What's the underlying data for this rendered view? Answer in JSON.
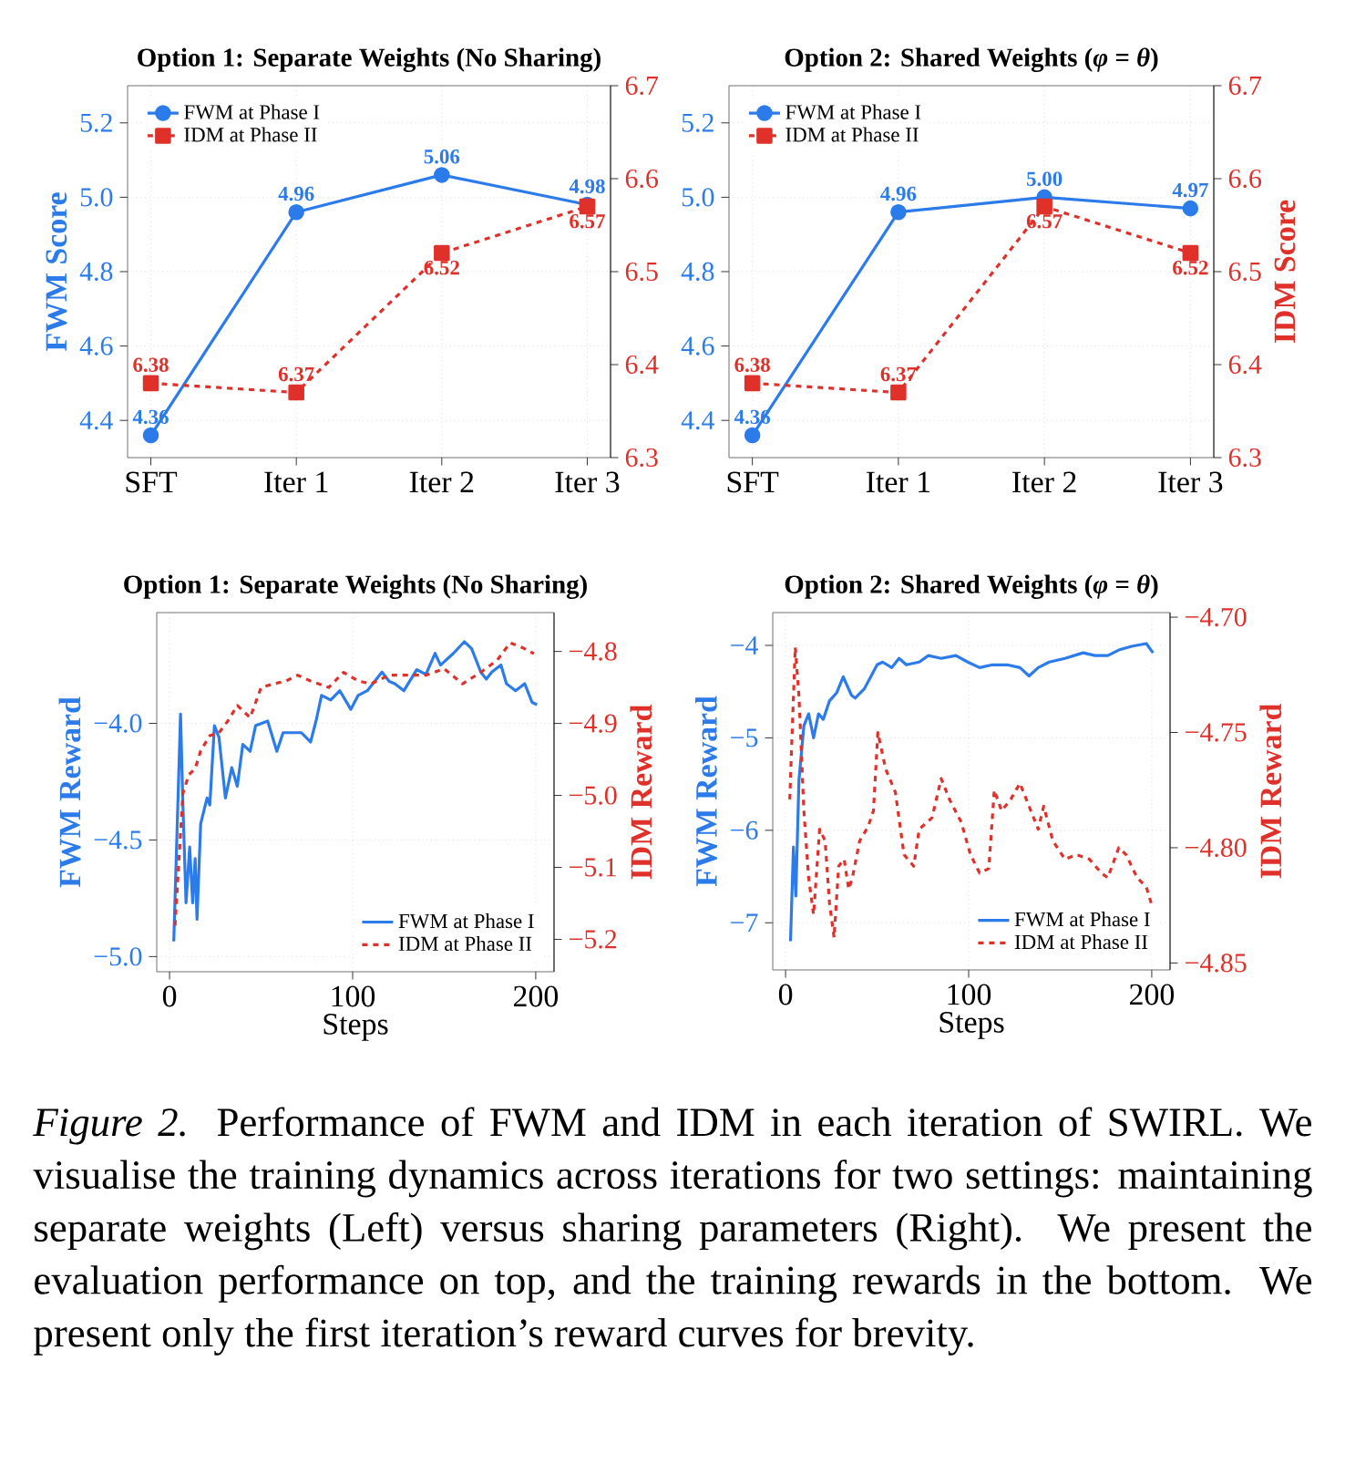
{
  "chart_data": [
    {
      "type": "line",
      "title": "Option 1: Separate Weights (No Sharing)",
      "ylabel": "FWM Score",
      "categories": [
        "SFT",
        "Iter 1",
        "Iter 2",
        "Iter 3"
      ],
      "ylim": [
        4.3,
        5.3
      ],
      "yticks": [
        {
          "value": 4.4,
          "label": "4.4"
        },
        {
          "value": 4.6,
          "label": "4.6"
        },
        {
          "value": 4.8,
          "label": "4.8"
        },
        {
          "value": 5.0,
          "label": "5.0"
        },
        {
          "value": 5.2,
          "label": "5.2"
        }
      ],
      "y2lim": [
        6.3,
        6.7
      ],
      "y2ticks": [
        {
          "value": 6.3,
          "label": "6.3"
        },
        {
          "value": 6.4,
          "label": "6.4"
        },
        {
          "value": 6.5,
          "label": "6.5"
        },
        {
          "value": 6.6,
          "label": "6.6"
        },
        {
          "value": 6.7,
          "label": "6.7"
        }
      ],
      "grid": true,
      "legend": "top left",
      "series": [
        {
          "name": "FWM at Phase I",
          "color": "#2b7bea",
          "marker": "circle",
          "line_style": "solid",
          "values": [
            4.36,
            4.96,
            5.06,
            4.98
          ],
          "value_labels": [
            "4.36",
            "4.96",
            "5.06",
            "4.98"
          ]
        },
        {
          "name": "IDM at Phase II",
          "color": "#e0302a",
          "marker": "square",
          "line_style": "dashed",
          "axis": "y2",
          "values": [
            6.38,
            6.37,
            6.52,
            6.57
          ],
          "value_labels": [
            "6.38",
            "6.37",
            "6.52",
            "6.57"
          ]
        }
      ]
    },
    {
      "type": "line",
      "title": "Option 2: Shared Weights (*φ* = *θ*)",
      "y2label": "IDM Score",
      "categories": [
        "SFT",
        "Iter 1",
        "Iter 2",
        "Iter 3"
      ],
      "ylim": [
        4.3,
        5.3
      ],
      "yticks": [
        {
          "value": 4.4,
          "label": "4.4"
        },
        {
          "value": 4.6,
          "label": "4.6"
        },
        {
          "value": 4.8,
          "label": "4.8"
        },
        {
          "value": 5.0,
          "label": "5.0"
        },
        {
          "value": 5.2,
          "label": "5.2"
        }
      ],
      "y2lim": [
        6.3,
        6.7
      ],
      "y2ticks": [
        {
          "value": 6.3,
          "label": "6.3"
        },
        {
          "value": 6.4,
          "label": "6.4"
        },
        {
          "value": 6.5,
          "label": "6.5"
        },
        {
          "value": 6.6,
          "label": "6.6"
        },
        {
          "value": 6.7,
          "label": "6.7"
        }
      ],
      "grid": true,
      "legend": "top left",
      "series": [
        {
          "name": "FWM at Phase I",
          "color": "#2b7bea",
          "marker": "circle",
          "line_style": "solid",
          "values": [
            4.36,
            4.96,
            5.0,
            4.97
          ],
          "value_labels": [
            "4.36",
            "4.96",
            "5.00",
            "4.97"
          ]
        },
        {
          "name": "IDM at Phase II",
          "color": "#e0302a",
          "marker": "square",
          "line_style": "dashed",
          "axis": "y2",
          "values": [
            6.38,
            6.37,
            6.57,
            6.52
          ],
          "value_labels": [
            "6.38",
            "6.37",
            "6.57",
            "6.52"
          ]
        }
      ]
    },
    {
      "type": "line",
      "title": "Option 1: Separate Weights (No Sharing)",
      "xlabel": "Steps",
      "ylabel": "FWM Reward",
      "y2label": "IDM Reward",
      "xlim": [
        -7,
        210
      ],
      "xticks": [
        0,
        100,
        200
      ],
      "ylim": [
        -5.065,
        -3.525
      ],
      "yticks": [
        {
          "value": -5.0,
          "label": "−5.0"
        },
        {
          "value": -4.5,
          "label": "−4.5"
        },
        {
          "value": -4.0,
          "label": "−4.0"
        }
      ],
      "y2lim": [
        -5.245,
        -4.746
      ],
      "y2ticks": [
        {
          "value": -5.2,
          "label": "−5.2"
        },
        {
          "value": -5.1,
          "label": "−5.1"
        },
        {
          "value": -5.0,
          "label": "−5.0"
        },
        {
          "value": -4.9,
          "label": "−4.9"
        },
        {
          "value": -4.8,
          "label": "−4.8"
        }
      ],
      "grid": true,
      "legend": "bottom right",
      "series": [
        {
          "name": "FWM at Phase I",
          "color": "#2b7bea",
          "line_style": "solid",
          "x": [
            2.3,
            6,
            7.3,
            9,
            11,
            12.6,
            14,
            15,
            17,
            20.5,
            22,
            24.5,
            27,
            30.5,
            34,
            37,
            40,
            44,
            47,
            53.6,
            58.6,
            62,
            67,
            72,
            77,
            80,
            83,
            88,
            93,
            99,
            103,
            108,
            113,
            116,
            120,
            123,
            128,
            135,
            140,
            145,
            148,
            155,
            161,
            165,
            170,
            173,
            176,
            181,
            184,
            189,
            194,
            198,
            200.7
          ],
          "values": [
            -4.935,
            -3.96,
            -4.35,
            -4.77,
            -4.53,
            -4.77,
            -4.58,
            -4.84,
            -4.43,
            -4.32,
            -4.35,
            -4.01,
            -4.06,
            -4.32,
            -4.19,
            -4.27,
            -4.09,
            -4.12,
            -4.01,
            -3.99,
            -4.12,
            -4.04,
            -4.04,
            -4.04,
            -4.08,
            -3.99,
            -3.88,
            -3.9,
            -3.86,
            -3.94,
            -3.88,
            -3.86,
            -3.81,
            -3.78,
            -3.82,
            -3.83,
            -3.86,
            -3.77,
            -3.79,
            -3.7,
            -3.75,
            -3.7,
            -3.65,
            -3.68,
            -3.78,
            -3.81,
            -3.78,
            -3.75,
            -3.83,
            -3.86,
            -3.83,
            -3.91,
            -3.92
          ]
        },
        {
          "name": "IDM at Phase II",
          "color": "#e0302a",
          "line_style": "dashed",
          "axis": "y2",
          "x": [
            3,
            7.3,
            10.6,
            14,
            17,
            22,
            27,
            32,
            37,
            44,
            50,
            57,
            63.6,
            70,
            77,
            87,
            95,
            103,
            110,
            120,
            130,
            140,
            150,
            160,
            170,
            179,
            186,
            193,
            199
          ],
          "values": [
            -5.181,
            -4.997,
            -4.971,
            -4.963,
            -4.938,
            -4.917,
            -4.913,
            -4.896,
            -4.875,
            -4.892,
            -4.85,
            -4.845,
            -4.841,
            -4.833,
            -4.841,
            -4.85,
            -4.829,
            -4.841,
            -4.845,
            -4.833,
            -4.833,
            -4.833,
            -4.824,
            -4.845,
            -4.829,
            -4.812,
            -4.788,
            -4.795,
            -4.803
          ]
        }
      ]
    },
    {
      "type": "line",
      "title": "Option 2: Shared Weights (*φ* = *θ*)",
      "xlabel": "Steps",
      "ylabel": "FWM Reward",
      "y2label": "IDM Reward",
      "xlim": [
        -7,
        210
      ],
      "xticks": [
        0,
        100,
        200
      ],
      "ylim": [
        -7.51,
        -3.645
      ],
      "yticks": [
        {
          "value": -7,
          "label": "−7"
        },
        {
          "value": -6,
          "label": "−6"
        },
        {
          "value": -5,
          "label": "−5"
        },
        {
          "value": -4,
          "label": "−4"
        }
      ],
      "y2lim": [
        -4.853,
        -4.698
      ],
      "y2ticks": [
        {
          "value": -4.85,
          "label": "−4.85"
        },
        {
          "value": -4.8,
          "label": "−4.80"
        },
        {
          "value": -4.75,
          "label": "−4.75"
        },
        {
          "value": -4.7,
          "label": "−4.70"
        }
      ],
      "grid": true,
      "legend": "bottom right",
      "series": [
        {
          "name": "FWM at Phase I",
          "color": "#2b7bea",
          "line_style": "solid",
          "x": [
            2.7,
            4.3,
            5.6,
            7.3,
            10,
            12.6,
            15.3,
            18,
            20.6,
            24,
            28,
            31.5,
            36,
            38,
            43,
            50,
            53,
            58,
            62,
            66,
            73,
            78,
            85,
            93,
            99.5,
            106,
            113,
            121,
            128,
            133,
            138,
            144,
            152.6,
            162.5,
            169,
            176,
            182,
            189,
            197,
            200.7
          ],
          "values": [
            -7.2,
            -6.18,
            -6.71,
            -5.46,
            -4.87,
            -4.74,
            -5.0,
            -4.74,
            -4.8,
            -4.6,
            -4.51,
            -4.34,
            -4.54,
            -4.57,
            -4.47,
            -4.21,
            -4.18,
            -4.24,
            -4.14,
            -4.21,
            -4.18,
            -4.11,
            -4.14,
            -4.11,
            -4.18,
            -4.24,
            -4.21,
            -4.21,
            -4.24,
            -4.33,
            -4.24,
            -4.18,
            -4.14,
            -4.08,
            -4.11,
            -4.11,
            -4.05,
            -4.01,
            -3.98,
            -4.08
          ]
        },
        {
          "name": "IDM at Phase II",
          "color": "#e0302a",
          "line_style": "dashed",
          "axis": "y2",
          "x": [
            2.3,
            3.6,
            5.3,
            7.3,
            10,
            12.6,
            15.3,
            18.6,
            21.6,
            24,
            26.5,
            29,
            32,
            34.5,
            36.5,
            40.5,
            45,
            48,
            50.4,
            54.7,
            60,
            64.7,
            70,
            73,
            80,
            85,
            89.5,
            96,
            101,
            106,
            111,
            114,
            118,
            123,
            128,
            133,
            138,
            141,
            146,
            152.6,
            159,
            166,
            172.5,
            176,
            182,
            186,
            192,
            197,
            199.7
          ],
          "values": [
            -4.779,
            -4.75,
            -4.713,
            -4.734,
            -4.784,
            -4.813,
            -4.829,
            -4.792,
            -4.797,
            -4.824,
            -4.839,
            -4.808,
            -4.805,
            -4.818,
            -4.813,
            -4.797,
            -4.791,
            -4.784,
            -4.75,
            -4.766,
            -4.776,
            -4.803,
            -4.808,
            -4.792,
            -4.787,
            -4.77,
            -4.779,
            -4.789,
            -4.803,
            -4.811,
            -4.809,
            -4.775,
            -4.784,
            -4.779,
            -4.772,
            -4.782,
            -4.792,
            -4.782,
            -4.797,
            -4.805,
            -4.803,
            -4.805,
            -4.811,
            -4.813,
            -4.8,
            -4.803,
            -4.813,
            -4.817,
            -4.824
          ]
        }
      ],
      "annotations": [
        "*Figure 2.*  Performance of FWM and IDM in each iteration of SWIRL. We visualise the training dynamics across iterations for two settings: maintaining separate weights (Left) versus sharing parameters (Right). We present the evaluation performance on top, and the training rewards in the bottom. We present only the first iteration’s reward curves for brevity."
      ]
    }
  ]
}
